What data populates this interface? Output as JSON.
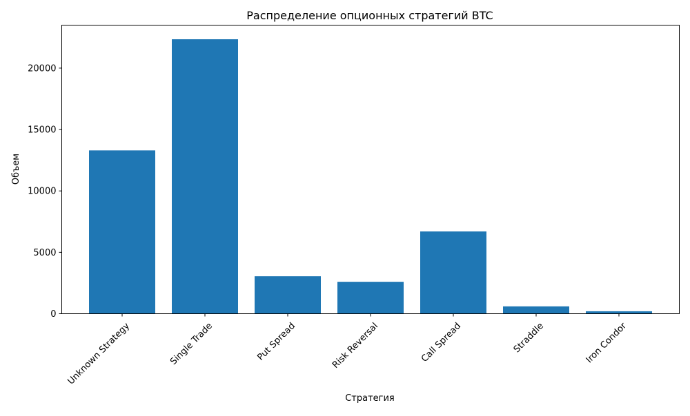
{
  "chart_data": {
    "type": "bar",
    "title": "Распределение опционных стратегий BTC",
    "xlabel": "Стратегия",
    "ylabel": "Объем",
    "categories": [
      "Unknown Strategy",
      "Single Trade",
      "Put Spread",
      "Risk Reversal",
      "Call Spread",
      "Straddle",
      "Iron Condor"
    ],
    "values": [
      13300,
      22350,
      3050,
      2600,
      6700,
      600,
      200
    ],
    "ylim": [
      0,
      23500
    ],
    "yticks": [
      0,
      5000,
      10000,
      15000,
      20000
    ],
    "ytick_labels": [
      "0",
      "5000",
      "10000",
      "15000",
      "20000"
    ],
    "bar_color": "#1f77b4",
    "grid": false,
    "legend": "none",
    "xtick_rotation": 45
  }
}
